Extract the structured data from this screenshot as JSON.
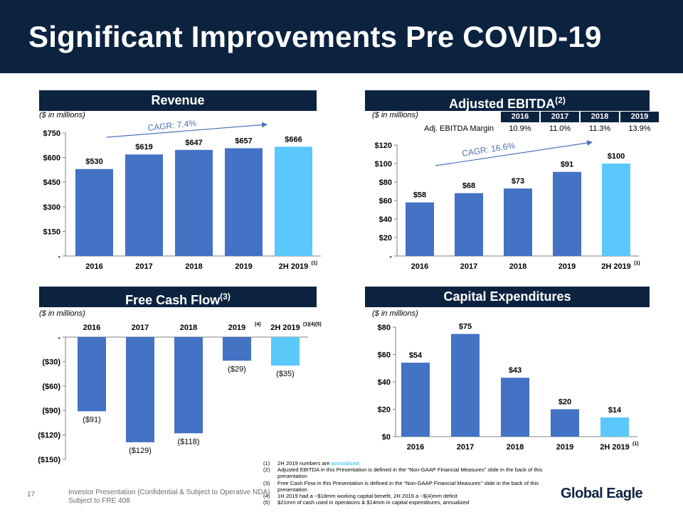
{
  "title": "Significant Improvements Pre COVID-19",
  "units_label": "($ in millions)",
  "panels": {
    "revenue": {
      "title": "Revenue",
      "title_sup": ""
    },
    "ebitda": {
      "title": "Adjusted EBITDA",
      "title_sup": "(2)"
    },
    "fcf": {
      "title": "Free Cash Flow",
      "title_sup": "(3)"
    },
    "capex": {
      "title": "Capital Expenditures",
      "title_sup": ""
    }
  },
  "ebitda_margin": {
    "label": "Adj. EBITDA Margin",
    "years": [
      "2016",
      "2017",
      "2018",
      "2019"
    ],
    "values": [
      "10.9%",
      "11.0%",
      "11.3%",
      "13.9%"
    ]
  },
  "colors": {
    "bar": "#4472c4",
    "highlight": "#5ac8fa",
    "navy": "#0c2340",
    "cagr": "#4a72b6"
  },
  "chart_data": [
    {
      "type": "bar",
      "id": "revenue",
      "categories": [
        "2016",
        "2017",
        "2018",
        "2019",
        "2H 2019"
      ],
      "category_sups": [
        "",
        "",
        "",
        "",
        "(1)"
      ],
      "values": [
        530,
        619,
        647,
        657,
        666
      ],
      "value_labels": [
        "$530",
        "$619",
        "$647",
        "$657",
        "$666"
      ],
      "highlight_index": 4,
      "ylim": [
        0,
        750
      ],
      "yticks": [
        0,
        150,
        300,
        450,
        600,
        750
      ],
      "ytick_labels": [
        "-",
        "$150",
        "$300",
        "$450",
        "$600",
        "$750"
      ],
      "annotation": "CAGR: 7.4%"
    },
    {
      "type": "bar",
      "id": "ebitda",
      "categories": [
        "2016",
        "2017",
        "2018",
        "2019",
        "2H 2019"
      ],
      "category_sups": [
        "",
        "",
        "",
        "",
        "(1)"
      ],
      "values": [
        58,
        68,
        73,
        91,
        100
      ],
      "value_labels": [
        "$58",
        "$68",
        "$73",
        "$91",
        "$100"
      ],
      "highlight_index": 4,
      "ylim": [
        0,
        120
      ],
      "yticks": [
        0,
        20,
        40,
        60,
        80,
        100,
        120
      ],
      "ytick_labels": [
        "-",
        "$20",
        "$40",
        "$60",
        "$80",
        "$100",
        "$120"
      ],
      "annotation": "CAGR: 16.6%"
    },
    {
      "type": "bar",
      "id": "fcf",
      "categories": [
        "2016",
        "2017",
        "2018",
        "2019",
        "2H 2019"
      ],
      "category_sups": [
        "",
        "",
        "",
        "(4)",
        "(1)(4)(5)"
      ],
      "values": [
        -91,
        -129,
        -118,
        -29,
        -35
      ],
      "value_labels": [
        "($91)",
        "($129)",
        "($118)",
        "($29)",
        "($35)"
      ],
      "highlight_index": 4,
      "ylim": [
        -150,
        0
      ],
      "yticks": [
        0,
        -30,
        -60,
        -90,
        -120,
        -150
      ],
      "ytick_labels": [
        "-",
        "($30)",
        "($60)",
        "($90)",
        "($120)",
        "($150)"
      ]
    },
    {
      "type": "bar",
      "id": "capex",
      "categories": [
        "2016",
        "2017",
        "2018",
        "2019",
        "2H 2019"
      ],
      "category_sups": [
        "",
        "",
        "",
        "",
        "(1)"
      ],
      "values": [
        54,
        75,
        43,
        20,
        14
      ],
      "value_labels": [
        "$54",
        "$75",
        "$43",
        "$20",
        "$14"
      ],
      "highlight_index": 4,
      "ylim": [
        0,
        80
      ],
      "yticks": [
        0,
        20,
        40,
        60,
        80
      ],
      "ytick_labels": [
        "$0",
        "$20",
        "$40",
        "$60",
        "$80"
      ]
    }
  ],
  "footnotes": [
    {
      "num": "(1)",
      "text": "2H 2019 numbers are ",
      "highlight": "annualized"
    },
    {
      "num": "(2)",
      "text": "Adjusted EBITDA in this Presentation is defined in the “Non-GAAP Financial Measures” slide in the back of this presentation",
      "highlight": ""
    },
    {
      "num": "(3)",
      "text": "Free Cash Flow in this Presentation is defined in the “Non-GAAP Financial Measures” slide in the back of this presentation",
      "highlight": ""
    },
    {
      "num": "(4)",
      "text": "1H 2019 had a ~$18mm working capital benefit, 2H 2019 a ~$(4)mm deficit",
      "highlight": ""
    },
    {
      "num": "(5)",
      "text": "$21mm of cash used in operations & $14mm in capital expenditures, annualized",
      "highlight": ""
    }
  ],
  "footer": {
    "page_number": "17",
    "line1": "Investor Presentation (Confidential & Subject to Operative NDA)",
    "line2": "Subject to FRE 408",
    "logo": "Global Eagle"
  }
}
